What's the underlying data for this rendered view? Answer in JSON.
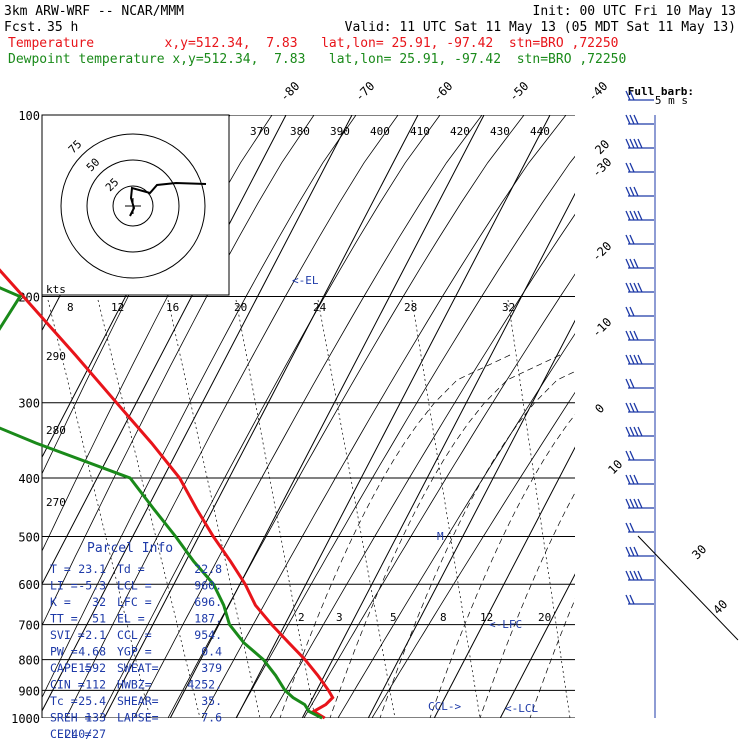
{
  "header": {
    "model": "3km ARW-WRF -- NCAR/MMM",
    "init": "Init: 00 UTC Fri 10 May 13",
    "fcst_label": "Fcst.",
    "fcst_value": "35 h",
    "valid": "Valid: 11 UTC Sat 11 May 13 (05 MDT Sat 11 May 13)",
    "temp_line": "Temperature         x,y=512.34,  7.83   lat,lon= 25.91, -97.42  stn=BRO ,72250",
    "dew_line": "Dewpoint temperature x,y=512.34,  7.83   lat,lon= 25.91, -97.42  stn=BRO ,72250"
  },
  "wind_key": {
    "line1": "Full barb:",
    "line2": "5 m s"
  },
  "hodograph": {
    "units": "kts",
    "ring_labels": [
      "75",
      "50",
      "25"
    ]
  },
  "annotations": {
    "el": "<-EL",
    "lfc": "<-LFC",
    "lcl": "<-LCL",
    "ccl": "CCL->",
    "m_marker": "M"
  },
  "parcel_info": {
    "title": "Parcel Info",
    "rows": [
      [
        "T  =",
        "23.1",
        "Td =",
        "22.8"
      ],
      [
        "LI =",
        "-5.3",
        "LCL =",
        "960."
      ],
      [
        "K  =",
        "32",
        "LFC =",
        "696."
      ],
      [
        "TT =",
        "51",
        "EL =",
        "187."
      ],
      [
        "SVI =",
        "-2.1",
        "CCL =",
        "954."
      ],
      [
        "PW =",
        "4.68",
        "YGP =",
        "0.4"
      ],
      [
        "CAPE =",
        "1592",
        "SWEAT=",
        "379"
      ],
      [
        "CIN =",
        "-112",
        "HWBZ=",
        "4252."
      ],
      [
        "Tc =",
        "25.4",
        "SHEAR=",
        "35."
      ],
      [
        "SREH =",
        "133",
        "LAPSE=",
        "7.6"
      ],
      [
        "CELL =",
        "240/27",
        "",
        ""
      ]
    ]
  },
  "chart_data": {
    "type": "line",
    "diagram": "skew-T log-P",
    "y_axis": {
      "scale": "log",
      "ticks": [
        100,
        200,
        300,
        400,
        500,
        600,
        700,
        800,
        900,
        1000
      ],
      "range": [
        1000,
        100
      ]
    },
    "temperature_ticks": [
      -80,
      -70,
      -60,
      -50,
      -40,
      -30,
      -20,
      -10,
      0,
      10,
      20,
      30,
      40
    ],
    "theta_labels": [
      "370",
      "380",
      "390",
      "400",
      "410",
      "420",
      "430",
      "440"
    ],
    "theta_lower_labels": [
      "290",
      "280",
      "270"
    ],
    "mixing_ratio_labels_upper": [
      "8",
      "12",
      "16",
      "20",
      "24",
      "28",
      "32"
    ],
    "mixing_ratio_labels_lower": [
      "2",
      "3",
      "5",
      "8",
      "12",
      "20"
    ],
    "series": [
      {
        "name": "Temperature",
        "color": "#e8141a",
        "points": [
          {
            "p": 1000,
            "t": 23.4
          },
          {
            "p": 975,
            "t": 21.2
          },
          {
            "p": 950,
            "t": 22.5
          },
          {
            "p": 925,
            "t": 23.0
          },
          {
            "p": 900,
            "t": 21.8
          },
          {
            "p": 850,
            "t": 19.0
          },
          {
            "p": 800,
            "t": 15.8
          },
          {
            "p": 750,
            "t": 12.0
          },
          {
            "p": 700,
            "t": 8.0
          },
          {
            "p": 650,
            "t": 4.0
          },
          {
            "p": 600,
            "t": 0.8
          },
          {
            "p": 550,
            "t": -3.2
          },
          {
            "p": 500,
            "t": -7.8
          },
          {
            "p": 450,
            "t": -12.5
          },
          {
            "p": 400,
            "t": -17.5
          },
          {
            "p": 350,
            "t": -24.5
          },
          {
            "p": 300,
            "t": -33.0
          },
          {
            "p": 250,
            "t": -43.0
          },
          {
            "p": 200,
            "t": -55.5
          },
          {
            "p": 175,
            "t": -63.0
          },
          {
            "p": 150,
            "t": -70.5
          },
          {
            "p": 125,
            "t": -74.5
          },
          {
            "p": 100,
            "t": -76.0
          }
        ]
      },
      {
        "name": "Dewpoint temperature",
        "color": "#1a8a1a",
        "points": [
          {
            "p": 1000,
            "t": 23.0
          },
          {
            "p": 975,
            "t": 20.5
          },
          {
            "p": 950,
            "t": 19.3
          },
          {
            "p": 925,
            "t": 17.0
          },
          {
            "p": 900,
            "t": 15.2
          },
          {
            "p": 850,
            "t": 12.6
          },
          {
            "p": 800,
            "t": 9.5
          },
          {
            "p": 750,
            "t": 5.2
          },
          {
            "p": 700,
            "t": 1.6
          },
          {
            "p": 650,
            "t": -0.8
          },
          {
            "p": 600,
            "t": -4.0
          },
          {
            "p": 550,
            "t": -8.8
          },
          {
            "p": 500,
            "t": -13.5
          },
          {
            "p": 450,
            "t": -19.0
          },
          {
            "p": 400,
            "t": -25.0
          },
          {
            "p": 350,
            "t": -42.0
          },
          {
            "p": 300,
            "t": -60.0
          },
          {
            "p": 250,
            "t": -57.0
          },
          {
            "p": 200,
            "t": -56.0
          },
          {
            "p": 175,
            "t": -71.0
          },
          {
            "p": 150,
            "t": -83.0
          },
          {
            "p": 125,
            "t": -82.0
          },
          {
            "p": 100,
            "t": -86.0
          }
        ]
      }
    ]
  }
}
